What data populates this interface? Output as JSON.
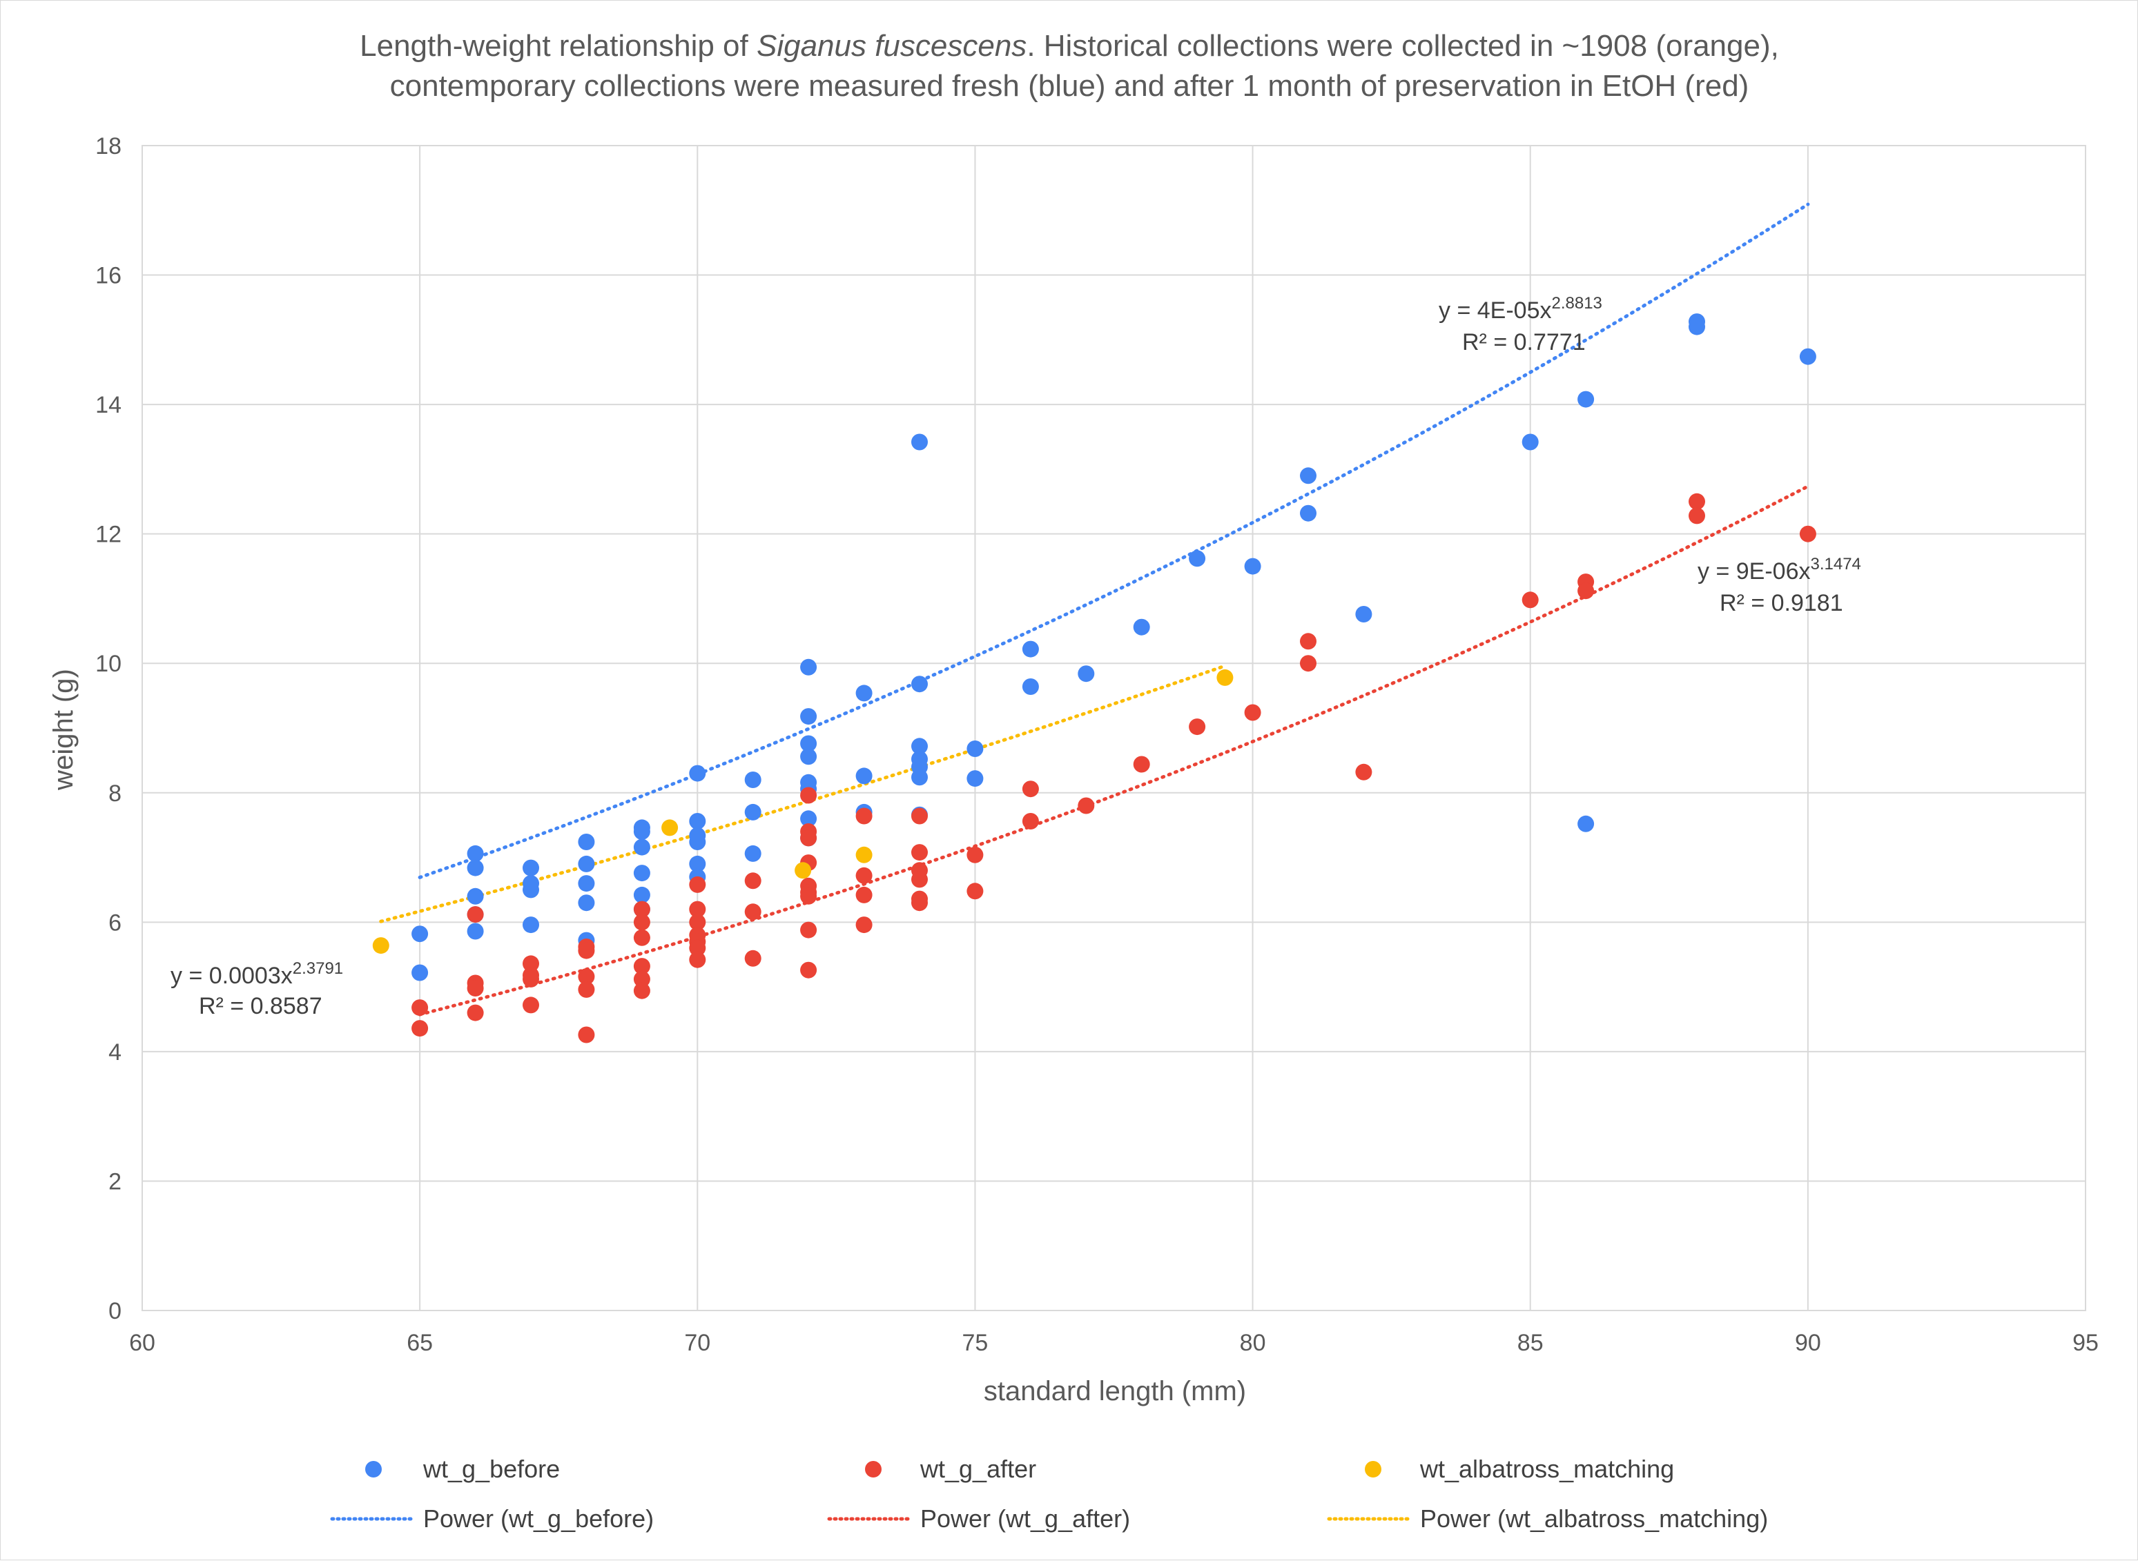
{
  "chart_data": {
    "type": "scatter",
    "title_parts": {
      "prefix": "Length-weight relationship of ",
      "species": "Siganus fuscescens",
      "suffix": ". Historical collections were collected in ~1908 (orange),",
      "line2": "contemporary collections were measured fresh (blue) and after 1 month of preservation in EtOH (red)"
    },
    "xlabel": "standard length (mm)",
    "ylabel": "weight (g)",
    "xlim": [
      60,
      95
    ],
    "ylim": [
      0,
      18
    ],
    "xticks": [
      60,
      65,
      70,
      75,
      80,
      85,
      90,
      95
    ],
    "yticks": [
      0,
      2,
      4,
      6,
      8,
      10,
      12,
      14,
      16,
      18
    ],
    "grid": true,
    "legend_position": "bottom",
    "series": [
      {
        "name": "wt_g_before",
        "color": "#4285F4",
        "points": [
          [
            65,
            5.82
          ],
          [
            65,
            5.22
          ],
          [
            66,
            7.06
          ],
          [
            66,
            6.84
          ],
          [
            66,
            6.4
          ],
          [
            66,
            6.12
          ],
          [
            66,
            5.86
          ],
          [
            67,
            6.84
          ],
          [
            67,
            6.6
          ],
          [
            67,
            6.5
          ],
          [
            67,
            5.96
          ],
          [
            68,
            7.24
          ],
          [
            68,
            6.9
          ],
          [
            68,
            6.6
          ],
          [
            68,
            6.3
          ],
          [
            68,
            5.72
          ],
          [
            69,
            7.46
          ],
          [
            69,
            7.4
          ],
          [
            69,
            7.16
          ],
          [
            69,
            6.76
          ],
          [
            69,
            6.42
          ],
          [
            69,
            6.2
          ],
          [
            70,
            8.3
          ],
          [
            70,
            7.56
          ],
          [
            70,
            7.34
          ],
          [
            70,
            7.24
          ],
          [
            70,
            6.9
          ],
          [
            70,
            6.7
          ],
          [
            71,
            8.2
          ],
          [
            71,
            7.7
          ],
          [
            71,
            7.06
          ],
          [
            72,
            9.94
          ],
          [
            72,
            9.18
          ],
          [
            72,
            8.76
          ],
          [
            72,
            8.56
          ],
          [
            72,
            8.16
          ],
          [
            72,
            8.06
          ],
          [
            72,
            7.6
          ],
          [
            72,
            7.3
          ],
          [
            73,
            9.54
          ],
          [
            73,
            8.26
          ],
          [
            73,
            7.7
          ],
          [
            74,
            13.42
          ],
          [
            74,
            9.68
          ],
          [
            74,
            8.72
          ],
          [
            74,
            8.52
          ],
          [
            74,
            8.4
          ],
          [
            74,
            8.24
          ],
          [
            74,
            7.66
          ],
          [
            75,
            8.68
          ],
          [
            75,
            8.22
          ],
          [
            76,
            10.22
          ],
          [
            76,
            9.64
          ],
          [
            77,
            9.84
          ],
          [
            78,
            10.56
          ],
          [
            79,
            11.62
          ],
          [
            80,
            11.5
          ],
          [
            81,
            12.9
          ],
          [
            81,
            12.32
          ],
          [
            82,
            10.76
          ],
          [
            85,
            13.42
          ],
          [
            86,
            14.08
          ],
          [
            86,
            7.52
          ],
          [
            88,
            15.28
          ],
          [
            88,
            15.2
          ],
          [
            90,
            14.74
          ]
        ]
      },
      {
        "name": "wt_g_after",
        "color": "#EA4335",
        "points": [
          [
            65,
            4.68
          ],
          [
            65,
            4.36
          ],
          [
            66,
            6.12
          ],
          [
            66,
            5.06
          ],
          [
            66,
            4.98
          ],
          [
            66,
            4.6
          ],
          [
            67,
            5.36
          ],
          [
            67,
            5.18
          ],
          [
            67,
            5.12
          ],
          [
            67,
            4.72
          ],
          [
            68,
            5.62
          ],
          [
            68,
            5.56
          ],
          [
            68,
            5.16
          ],
          [
            68,
            4.96
          ],
          [
            68,
            4.26
          ],
          [
            69,
            6.2
          ],
          [
            69,
            6.0
          ],
          [
            69,
            5.76
          ],
          [
            69,
            5.32
          ],
          [
            69,
            5.12
          ],
          [
            69,
            4.94
          ],
          [
            70,
            6.58
          ],
          [
            70,
            6.2
          ],
          [
            70,
            6.0
          ],
          [
            70,
            5.8
          ],
          [
            70,
            5.7
          ],
          [
            70,
            5.6
          ],
          [
            70,
            5.42
          ],
          [
            71,
            6.64
          ],
          [
            71,
            6.16
          ],
          [
            71,
            5.44
          ],
          [
            72,
            7.96
          ],
          [
            72,
            7.4
          ],
          [
            72,
            7.3
          ],
          [
            72,
            6.92
          ],
          [
            72,
            6.56
          ],
          [
            72,
            6.46
          ],
          [
            72,
            6.4
          ],
          [
            72,
            5.88
          ],
          [
            72,
            5.26
          ],
          [
            73,
            7.64
          ],
          [
            73,
            6.72
          ],
          [
            73,
            6.42
          ],
          [
            73,
            5.96
          ],
          [
            74,
            7.64
          ],
          [
            74,
            7.08
          ],
          [
            74,
            6.8
          ],
          [
            74,
            6.66
          ],
          [
            74,
            6.36
          ],
          [
            74,
            6.3
          ],
          [
            75,
            7.04
          ],
          [
            75,
            6.48
          ],
          [
            76,
            8.06
          ],
          [
            76,
            7.56
          ],
          [
            77,
            7.8
          ],
          [
            78,
            8.44
          ],
          [
            79,
            9.02
          ],
          [
            80,
            9.24
          ],
          [
            81,
            10.34
          ],
          [
            81,
            10.0
          ],
          [
            82,
            8.32
          ],
          [
            85,
            10.98
          ],
          [
            86,
            11.26
          ],
          [
            86,
            11.12
          ],
          [
            88,
            12.5
          ],
          [
            88,
            12.28
          ],
          [
            90,
            12.0
          ]
        ]
      },
      {
        "name": "wt_albatross_matching",
        "color": "#FBBC04",
        "points": [
          [
            64.3,
            5.64
          ],
          [
            69.5,
            7.46
          ],
          [
            71.9,
            6.8
          ],
          [
            73,
            7.04
          ],
          [
            79.5,
            9.78
          ]
        ]
      }
    ],
    "trendlines": [
      {
        "name": "Power (wt_g_before)",
        "color": "#4285F4",
        "a": 4e-05,
        "b": 2.8813,
        "x_range": [
          65,
          90
        ],
        "eq_prefix": "y = 4E-05x",
        "eq_exp": "2.8813",
        "r2": "R² = 0.7771"
      },
      {
        "name": "Power (wt_g_after)",
        "color": "#EA4335",
        "a": 9e-06,
        "b": 3.1474,
        "x_range": [
          65,
          90
        ],
        "eq_prefix": "y = 9E-06x",
        "eq_exp": "3.1474",
        "r2": "R² = 0.9181"
      },
      {
        "name": "Power (wt_albatross_matching)",
        "color": "#FBBC04",
        "a": 0.0003,
        "b": 2.3791,
        "x_range": [
          64.3,
          79.5
        ],
        "eq_prefix": "y = 0.0003x",
        "eq_exp": "2.3791",
        "r2": "R² = 0.8587"
      }
    ]
  }
}
